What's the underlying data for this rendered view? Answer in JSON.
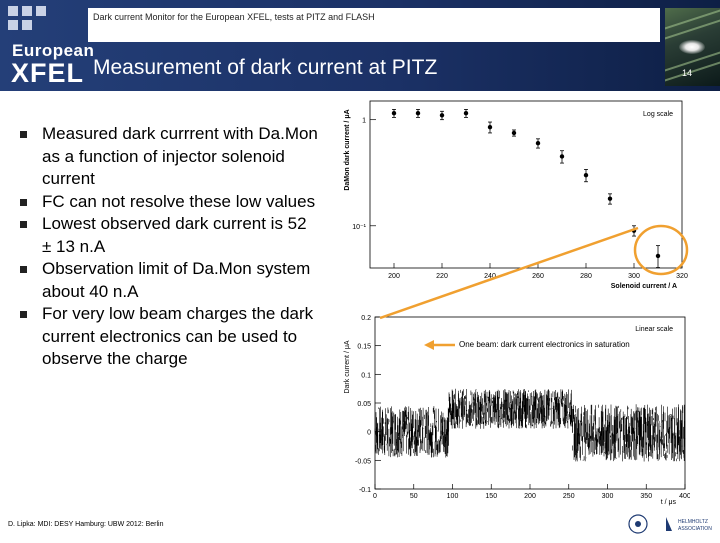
{
  "header": {
    "subtitle": "Dark current Monitor for the European XFEL, tests at PITZ and FLASH",
    "brand_line1": "European",
    "brand_line2": "XFEL",
    "title": "Measurement of dark current at PITZ",
    "page_number": "14"
  },
  "bullets": [
    "Measured dark currrent with Da.Mon as a function of injector solenoid current",
    "FC can not resolve these low values",
    "Lowest observed dark current is 52 ± 13 n.A",
    "Observation limit of Da.Mon system about 40 n.A",
    "For very low beam charges the dark current electronics can be used to observe the charge"
  ],
  "footer": {
    "text": "D. Lipka: MDI: DESY Hamburg: UBW 2012: Berlin",
    "logo_text_1": "HELMHOLTZ",
    "logo_text_2": "ASSOCIATION"
  },
  "colors": {
    "header_bg": "#1e3a72",
    "accent_orange": "#f0a030",
    "text": "#000000"
  },
  "chart_data": [
    {
      "type": "scatter",
      "title": "",
      "scale_label": "Log scale",
      "xlabel": "Solenoid current / A",
      "ylabel": "DaMon dark current / μA",
      "xlim": [
        190,
        320
      ],
      "x_ticks": [
        "200",
        "220",
        "240",
        "260",
        "280",
        "300",
        "320"
      ],
      "x_tick_values": [
        200,
        220,
        240,
        260,
        280,
        300,
        320
      ],
      "y_log": true,
      "ylim": [
        0.04,
        1.5
      ],
      "y_ticks": [
        "1",
        "10⁻¹"
      ],
      "y_tick_values": [
        1,
        0.1
      ],
      "points": [
        {
          "x": 200,
          "y": 1.15,
          "err": 0.1
        },
        {
          "x": 210,
          "y": 1.15,
          "err": 0.1
        },
        {
          "x": 220,
          "y": 1.1,
          "err": 0.1
        },
        {
          "x": 230,
          "y": 1.15,
          "err": 0.1
        },
        {
          "x": 240,
          "y": 0.85,
          "err": 0.1
        },
        {
          "x": 250,
          "y": 0.75,
          "err": 0.05
        },
        {
          "x": 260,
          "y": 0.6,
          "err": 0.06
        },
        {
          "x": 270,
          "y": 0.45,
          "err": 0.06
        },
        {
          "x": 280,
          "y": 0.3,
          "err": 0.04
        },
        {
          "x": 290,
          "y": 0.18,
          "err": 0.02
        },
        {
          "x": 300,
          "y": 0.09,
          "err": 0.01
        },
        {
          "x": 310,
          "y": 0.052,
          "err": 0.013
        }
      ]
    },
    {
      "type": "line",
      "title": "",
      "scale_label": "Linear scale",
      "annotation": "One beam: dark current electronics in saturation",
      "xlabel": "t / μs",
      "ylabel": "Dark current / μA",
      "xlim": [
        0,
        400
      ],
      "x_ticks": [
        "0",
        "50",
        "100",
        "150",
        "200",
        "250",
        "300",
        "350",
        "400"
      ],
      "x_tick_values": [
        0,
        50,
        100,
        150,
        200,
        250,
        300,
        350,
        400
      ],
      "ylim": [
        -0.1,
        0.2
      ],
      "y_ticks": [
        "-0.1",
        "-0.05",
        "0",
        "0.05",
        "0.1",
        "0.15",
        "0.2"
      ],
      "y_tick_values": [
        -0.1,
        -0.05,
        0,
        0.05,
        0.1,
        0.15,
        0.2
      ],
      "segments": [
        {
          "x_start": 0,
          "x_end": 95,
          "mean": 0.0,
          "noise": 0.045
        },
        {
          "x_start": 95,
          "x_end": 255,
          "mean": 0.04,
          "noise": 0.035
        },
        {
          "x_start": 255,
          "x_end": 400,
          "mean": -0.002,
          "noise": 0.05
        }
      ]
    }
  ]
}
